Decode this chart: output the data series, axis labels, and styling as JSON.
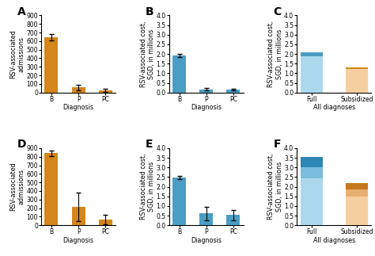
{
  "panel_A": {
    "label": "A",
    "categories": [
      "B",
      "P",
      "PC"
    ],
    "values": [
      645,
      60,
      25
    ],
    "errors": [
      35,
      30,
      15
    ],
    "bar_color": "#D4861A",
    "ylabel": "RSV-associated\nadmissions",
    "xlabel": "Diagnosis",
    "ylim": [
      0,
      900
    ],
    "yticks": [
      0,
      100,
      200,
      300,
      400,
      500,
      600,
      700,
      800,
      900
    ]
  },
  "panel_B": {
    "label": "B",
    "categories": [
      "B",
      "P",
      "PC"
    ],
    "values": [
      1.93,
      0.17,
      0.15
    ],
    "errors": [
      0.08,
      0.06,
      0.05
    ],
    "bar_color": "#4A9DC4",
    "ylabel": "RSV-associated cost,\nSGD, in millions",
    "xlabel": "Diagnosis",
    "ylim": [
      0,
      4.0
    ],
    "yticks": [
      0.0,
      0.5,
      1.0,
      1.5,
      2.0,
      2.5,
      3.0,
      3.5,
      4.0
    ]
  },
  "panel_C": {
    "label": "C",
    "categories": [
      "Full",
      "Subsidized"
    ],
    "full_light": 1.9,
    "full_dark": 0.2,
    "sub_light": 1.22,
    "sub_dark": 0.1,
    "bar_colors_light": [
      "#ACD8EE",
      "#F5CFA0"
    ],
    "bar_colors_dark": [
      "#4A9DC4",
      "#D4861A"
    ],
    "ylabel": "RSV-associated cost,\nSGD, in millions",
    "xlabel": "All diagnoses",
    "ylim": [
      0,
      4.0
    ],
    "yticks": [
      0.0,
      0.5,
      1.0,
      1.5,
      2.0,
      2.5,
      3.0,
      3.5,
      4.0
    ]
  },
  "panel_D": {
    "label": "D",
    "categories": [
      "B",
      "P",
      "PC"
    ],
    "values": [
      840,
      215,
      70
    ],
    "errors": [
      35,
      165,
      55
    ],
    "bar_color": "#D4861A",
    "ylabel": "RSV-associated\nadmissions",
    "xlabel": "Diagnosis",
    "ylim": [
      0,
      900
    ],
    "yticks": [
      0,
      100,
      200,
      300,
      400,
      500,
      600,
      700,
      800,
      900
    ]
  },
  "panel_E": {
    "label": "E",
    "categories": [
      "B",
      "P",
      "PC"
    ],
    "values": [
      2.48,
      0.62,
      0.53
    ],
    "errors": [
      0.07,
      0.35,
      0.28
    ],
    "bar_color": "#4A9DC4",
    "ylabel": "RSV-associated cost,\nSGD, in millions",
    "xlabel": "Diagnosis",
    "ylim": [
      0,
      4.0
    ],
    "yticks": [
      0.0,
      0.5,
      1.0,
      1.5,
      2.0,
      2.5,
      3.0,
      3.5,
      4.0
    ]
  },
  "panel_F": {
    "label": "F",
    "categories": [
      "Full",
      "Subsidized"
    ],
    "full_light": 2.45,
    "full_mid": 0.55,
    "full_dark": 0.55,
    "sub_light": 1.5,
    "sub_mid": 0.35,
    "sub_dark": 0.35,
    "bar_colors_light": [
      "#ACD8EE",
      "#F5CFA0"
    ],
    "bar_colors_mid": [
      "#7BBEDD",
      "#E8B070"
    ],
    "bar_colors_dark": [
      "#2E86B5",
      "#C47820"
    ],
    "ylabel": "RSV-associated cost,\nSGD, in millions",
    "xlabel": "All diagnoses",
    "ylim": [
      0,
      4.0
    ],
    "yticks": [
      0.0,
      0.5,
      1.0,
      1.5,
      2.0,
      2.5,
      3.0,
      3.5,
      4.0
    ]
  },
  "tick_fontsize": 5.5,
  "axis_label_fontsize": 5.8,
  "panel_label_fontsize": 10,
  "bg_color": "#F0F0F0",
  "fig_bg_color": "#FFFFFF"
}
